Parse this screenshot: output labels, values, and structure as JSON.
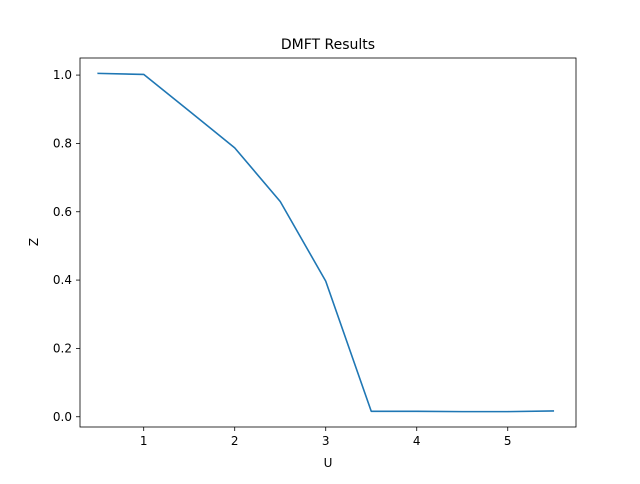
{
  "chart_data": {
    "type": "line",
    "title": "DMFT Results",
    "xlabel": "U",
    "ylabel": "Z",
    "xlim": [
      0.3,
      5.75
    ],
    "ylim": [
      -0.03,
      1.05
    ],
    "x_ticks": [
      1,
      2,
      3,
      4,
      5
    ],
    "y_ticks": [
      0.0,
      0.2,
      0.4,
      0.6,
      0.8,
      1.0
    ],
    "x_tick_labels": [
      "1",
      "2",
      "3",
      "4",
      "5"
    ],
    "y_tick_labels": [
      "0.0",
      "0.2",
      "0.4",
      "0.6",
      "0.8",
      "1.0"
    ],
    "grid": false,
    "series": [
      {
        "color": "#1f77b4",
        "x": [
          0.5,
          1.0,
          1.5,
          2.0,
          2.5,
          3.0,
          3.5,
          4.0,
          4.5,
          5.0,
          5.5
        ],
        "y": [
          1.005,
          1.002,
          0.895,
          0.787,
          0.63,
          0.397,
          0.016,
          0.016,
          0.015,
          0.015,
          0.017
        ]
      }
    ]
  }
}
